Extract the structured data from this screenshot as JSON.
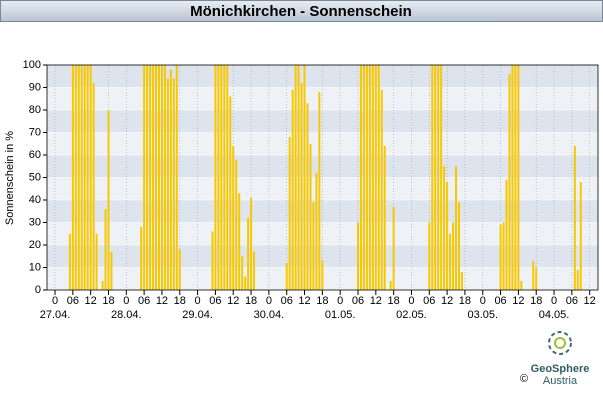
{
  "chart_data": {
    "type": "bar",
    "title": "Mönichkirchen - Sonnenschein",
    "y_label": "Sonnenschein in %",
    "x": [
      5,
      6,
      7,
      8,
      9,
      10,
      11,
      12,
      13,
      14,
      16,
      17,
      18,
      19,
      29,
      30,
      31,
      32,
      33,
      34,
      35,
      36,
      37,
      38,
      39,
      40,
      41,
      42,
      53,
      54,
      55,
      56,
      57,
      58,
      59,
      60,
      61,
      62,
      63,
      64,
      65,
      66,
      67,
      78,
      79,
      80,
      81,
      82,
      83,
      84,
      85,
      86,
      87,
      88,
      89,
      90,
      102,
      103,
      104,
      105,
      106,
      107,
      108,
      109,
      110,
      111,
      113,
      114,
      126,
      127,
      128,
      129,
      130,
      131,
      132,
      133,
      134,
      135,
      136,
      137,
      150,
      151,
      152,
      153,
      154,
      155,
      156,
      157,
      161,
      162,
      175,
      176,
      177
    ],
    "values": [
      25,
      100,
      100,
      100,
      100,
      100,
      100,
      100,
      92,
      25,
      4,
      36,
      80,
      17,
      28,
      100,
      100,
      100,
      100,
      100,
      100,
      100,
      100,
      94,
      98,
      94,
      100,
      18,
      26,
      100,
      100,
      100,
      100,
      100,
      86,
      64,
      58,
      43,
      15,
      6,
      32,
      41,
      17,
      12,
      68,
      89,
      100,
      100,
      92,
      100,
      83,
      65,
      39,
      52,
      88,
      13,
      30,
      100,
      100,
      100,
      100,
      100,
      100,
      100,
      89,
      64,
      4,
      37,
      30,
      100,
      100,
      100,
      100,
      55,
      48,
      25,
      30,
      55,
      39,
      8,
      29,
      30,
      49,
      96,
      100,
      100,
      100,
      4,
      13,
      10,
      64,
      9,
      48
    ],
    "color": "#f7c800",
    "xlim": [
      -2.7,
      182.8
    ],
    "ylim": [
      0,
      100
    ],
    "yticks": [
      0,
      10,
      20,
      30,
      40,
      50,
      60,
      70,
      80,
      90,
      100
    ],
    "xticks": [
      0,
      {
        "value": 6,
        "label": "06"
      },
      {
        "value": 12,
        "label": "12"
      },
      {
        "value": 18,
        "label": "18"
      },
      {
        "value": 24,
        "label": "0"
      },
      {
        "value": 30,
        "label": "06"
      },
      {
        "value": 36,
        "label": "12"
      },
      {
        "value": 42,
        "label": "18"
      },
      {
        "value": 48,
        "label": "0"
      },
      {
        "value": 54,
        "label": "06"
      },
      {
        "value": 60,
        "label": "12"
      },
      {
        "value": 66,
        "label": "18"
      },
      {
        "value": 72,
        "label": "0"
      },
      {
        "value": 78,
        "label": "06"
      },
      {
        "value": 84,
        "label": "12"
      },
      {
        "value": 90,
        "label": "18"
      },
      {
        "value": 96,
        "label": "0"
      },
      {
        "value": 102,
        "label": "06"
      },
      {
        "value": 108,
        "label": "12"
      },
      {
        "value": 114,
        "label": "18"
      },
      {
        "value": 120,
        "label": "0"
      },
      {
        "value": 126,
        "label": "06"
      },
      {
        "value": 132,
        "label": "12"
      },
      {
        "value": 138,
        "label": "18"
      },
      {
        "value": 144,
        "label": "0"
      },
      {
        "value": 150,
        "label": "06"
      },
      {
        "value": 156,
        "label": "12"
      },
      {
        "value": 162,
        "label": "18"
      },
      {
        "value": 168,
        "label": "0"
      },
      {
        "value": 174,
        "label": "06"
      },
      {
        "value": 180,
        "label": "12"
      }
    ],
    "date_ticks": [
      {
        "value": 0,
        "label": "27.04."
      },
      {
        "value": 24,
        "label": "28.04."
      },
      {
        "value": 48,
        "label": "29.04."
      },
      {
        "value": 72,
        "label": "30.04."
      },
      {
        "value": 96,
        "label": "01.05."
      },
      {
        "value": 120,
        "label": "02.05."
      },
      {
        "value": 144,
        "label": "03.05."
      },
      {
        "value": 168,
        "label": "04.05."
      }
    ],
    "grid": true
  },
  "logo": {
    "name": "GeoSphere",
    "sub": "Austria",
    "copyright": "©"
  }
}
